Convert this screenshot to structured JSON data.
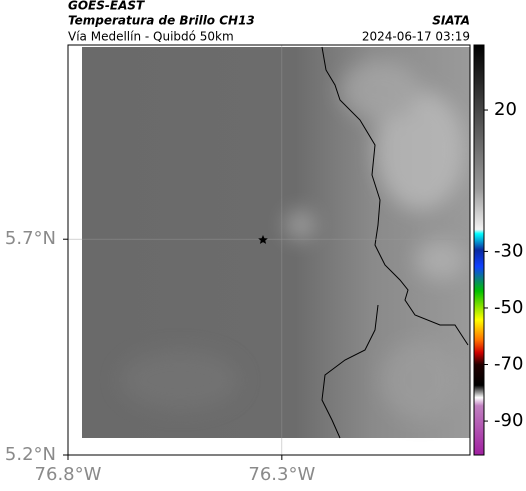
{
  "header": {
    "satellite": "GOES-EAST",
    "title": "Temperatura de Brillo CH13",
    "subtitle": "Vía Medellín - Quibdó 50km",
    "source": "SIATA",
    "datetime": "2024-06-17 03:19"
  },
  "map": {
    "xlim": [
      -76.8,
      -75.86
    ],
    "ylim": [
      5.2,
      6.15
    ],
    "xticks": [
      {
        "value": -76.8,
        "label": "76.8°W"
      },
      {
        "value": -76.3,
        "label": "76.3°W"
      }
    ],
    "yticks": [
      {
        "value": 5.2,
        "label": "5.2°N"
      },
      {
        "value": 5.7,
        "label": "5.7°N"
      }
    ],
    "grid": true
  },
  "colorbar": {
    "lim": [
      -102,
      43
    ],
    "ticks": [
      20,
      -30,
      -50,
      -70,
      -90
    ]
  }
}
